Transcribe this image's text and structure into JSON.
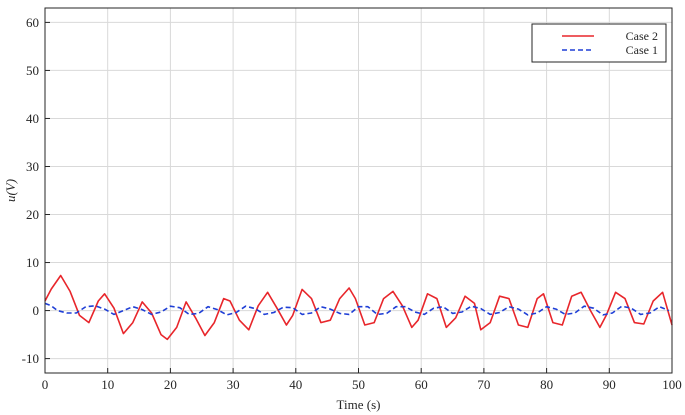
{
  "chart_data": {
    "type": "line",
    "xlabel": "Time (s)",
    "ylabel": "u(V)",
    "xlim": [
      0,
      100
    ],
    "ylim": [
      -13,
      63
    ],
    "xticks": [
      0,
      10,
      20,
      30,
      40,
      50,
      60,
      70,
      80,
      90,
      100
    ],
    "yticks": [
      -10,
      0,
      10,
      20,
      30,
      40,
      50,
      60
    ],
    "grid": true,
    "legend": "top-right",
    "series": [
      {
        "name": "Case 2",
        "color": "#e8262b",
        "style": "solid",
        "x": [
          0,
          1,
          2.5,
          4,
          5.5,
          7,
          8.5,
          9.5,
          11,
          12.5,
          14,
          15.5,
          17,
          18.5,
          19.5,
          21,
          22.5,
          24,
          25.5,
          27,
          28.5,
          29.5,
          31,
          32.5,
          34,
          35.5,
          37,
          38.5,
          39.5,
          41,
          42.5,
          44,
          45.5,
          47,
          48.5,
          49.5,
          51,
          52.5,
          54,
          55.5,
          57,
          58.5,
          59.5,
          61,
          62.5,
          64,
          65.5,
          67,
          68.5,
          69.5,
          71,
          72.5,
          74,
          75.5,
          77,
          78.5,
          79.5,
          81,
          82.5,
          84,
          85.5,
          87,
          88.5,
          89.5,
          91,
          92.5,
          94,
          95.5,
          97,
          98.5,
          100
        ],
        "y": [
          2,
          4.5,
          7.3,
          4,
          -1,
          -2.5,
          2,
          3.5,
          0.5,
          -4.8,
          -2.5,
          1.8,
          -0.5,
          -5,
          -6,
          -3.5,
          1.8,
          -1.5,
          -5.2,
          -2.5,
          2.5,
          2,
          -2,
          -4,
          1,
          3.8,
          0.5,
          -3,
          -1,
          4.4,
          2.5,
          -2.5,
          -2,
          2.5,
          4.7,
          2.5,
          -3,
          -2.5,
          2.5,
          4,
          1,
          -3.5,
          -2,
          3.5,
          2.5,
          -3.5,
          -1.5,
          3,
          1.5,
          -4,
          -2.5,
          3,
          2.5,
          -3,
          -3.5,
          2.5,
          3.5,
          -2.5,
          -3,
          3,
          3.8,
          0,
          -3.5,
          -1,
          3.8,
          2.5,
          -2.5,
          -2.8,
          2,
          3.8,
          -3
        ]
      },
      {
        "name": "Case 1",
        "color": "#1f3fd6",
        "style": "dashed",
        "x": [
          0,
          1,
          2,
          3.5,
          5,
          6.5,
          8,
          9.5,
          11,
          12.5,
          14,
          15.5,
          17,
          18.5,
          20,
          21.5,
          23,
          24.5,
          26,
          27.5,
          29,
          30.5,
          32,
          33.5,
          35,
          36.5,
          38,
          39.5,
          41,
          42.5,
          44,
          45.5,
          47,
          48.5,
          50,
          51.5,
          53,
          54.5,
          56,
          57.5,
          59,
          60.5,
          62,
          63.5,
          65,
          66.5,
          68,
          69.5,
          71,
          72.5,
          74,
          75.5,
          77,
          78.5,
          80,
          81.5,
          83,
          84.5,
          86,
          87.5,
          89,
          90.5,
          92,
          93.5,
          95,
          96.5,
          98,
          99.5
        ],
        "y": [
          1.5,
          1,
          0,
          -0.5,
          -0.5,
          0.8,
          1,
          0.3,
          -0.8,
          0,
          0.8,
          0.2,
          -0.8,
          -0.3,
          0.9,
          0.6,
          -0.8,
          -0.6,
          0.8,
          0.2,
          -0.9,
          -0.4,
          0.9,
          0.4,
          -0.8,
          -0.4,
          0.7,
          0.6,
          -0.8,
          -0.5,
          0.8,
          0.3,
          -0.6,
          -0.8,
          0.8,
          0.8,
          -0.8,
          -0.6,
          0.8,
          0.8,
          -0.3,
          -0.8,
          0.5,
          0.8,
          -0.6,
          -0.3,
          0.9,
          0.4,
          -0.8,
          -0.4,
          0.8,
          0.3,
          -0.9,
          -0.5,
          0.8,
          0.3,
          -0.8,
          -0.5,
          0.9,
          0.5,
          -0.9,
          -0.5,
          0.9,
          0.5,
          -0.8,
          -0.5,
          0.8,
          0
        ]
      }
    ]
  }
}
